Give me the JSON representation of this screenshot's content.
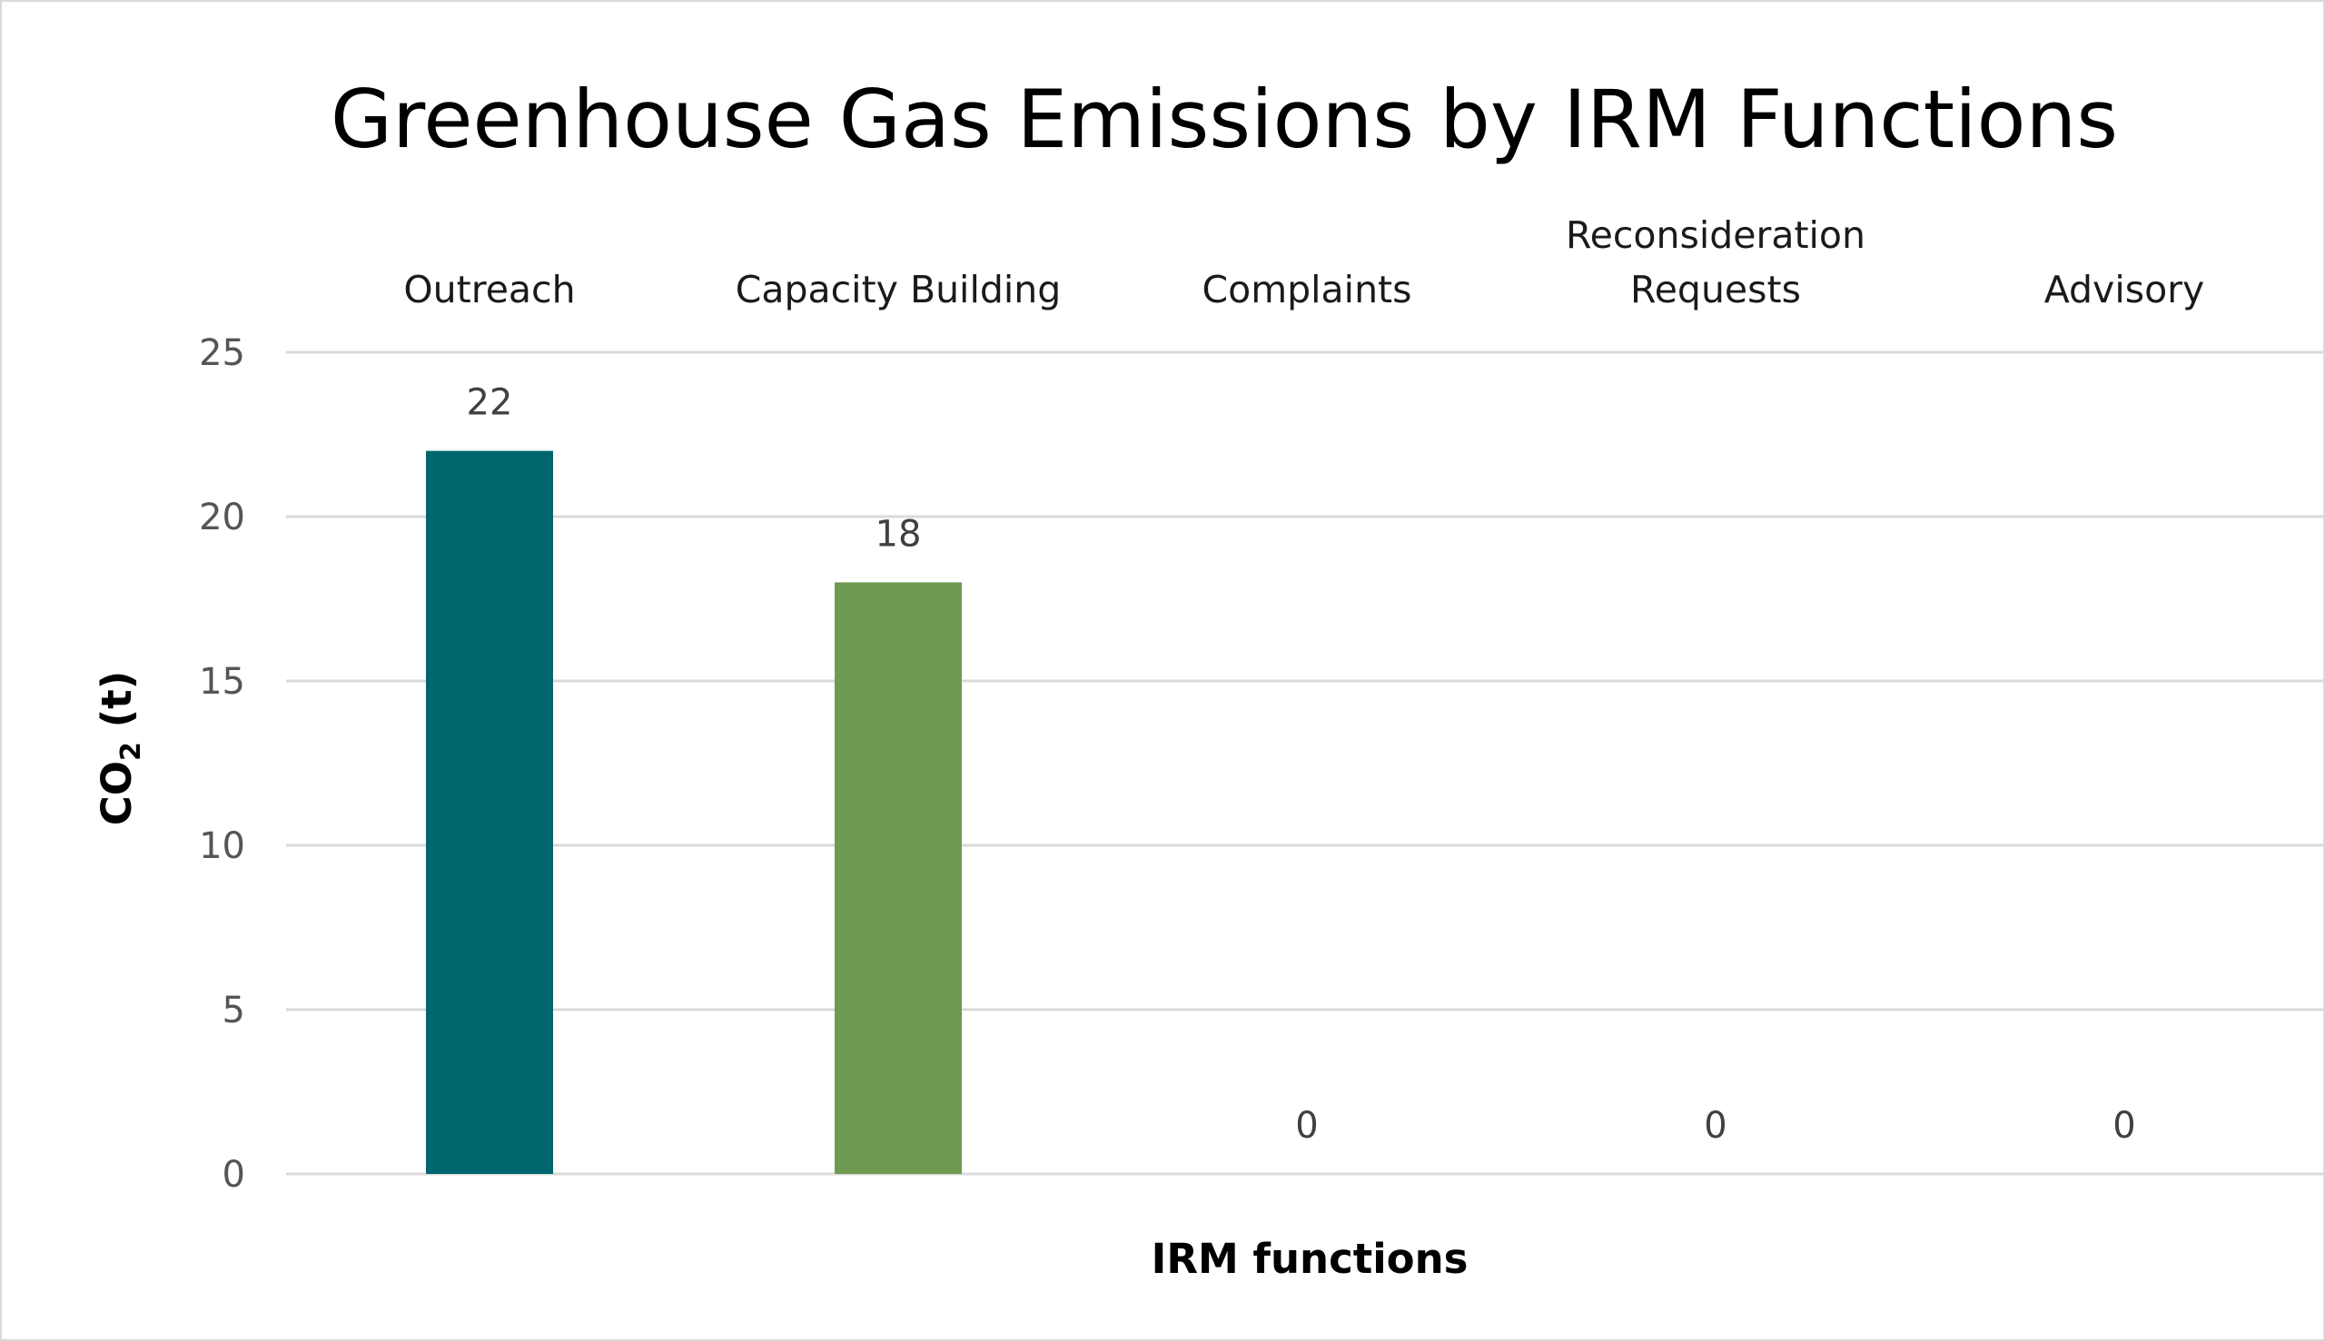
{
  "chart_data": {
    "type": "bar",
    "title": "Greenhouse Gas Emissions by IRM Functions",
    "xlabel": "IRM functions",
    "ylabel_main": "CO",
    "ylabel_sub": "2",
    "ylabel_unit": " (t)",
    "categories": [
      [
        "Outreach"
      ],
      [
        "Capacity Building"
      ],
      [
        "Complaints"
      ],
      [
        "Reconsideration",
        "Requests"
      ],
      [
        "Advisory"
      ]
    ],
    "values": [
      22,
      18,
      0,
      0,
      0
    ],
    "data_labels": [
      "22",
      "18",
      "0",
      "0",
      "0"
    ],
    "bar_colors": [
      "#00666e",
      "#6e9a52",
      "#00666e",
      "#00666e",
      "#00666e"
    ],
    "ylim": [
      0,
      25
    ],
    "yticks": [
      0,
      5,
      10,
      15,
      20,
      25
    ],
    "grid": true,
    "category_labels_position": "top",
    "legend": "none"
  }
}
